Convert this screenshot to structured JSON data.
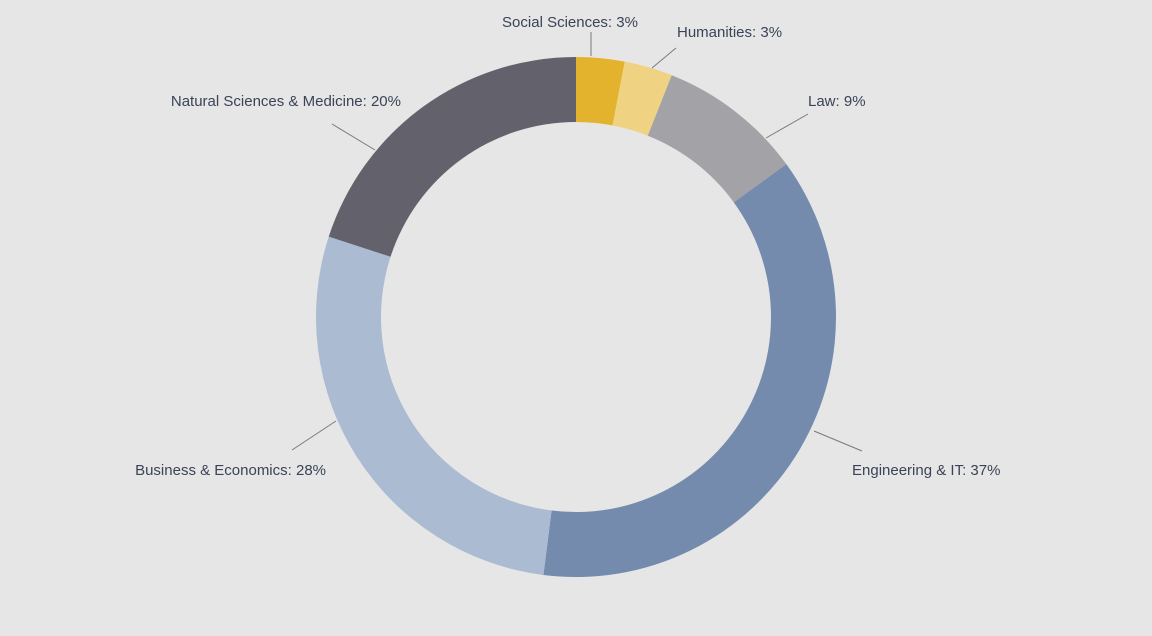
{
  "chart_data": {
    "type": "pie",
    "variant": "donut",
    "title": "",
    "start_angle_deg": 0,
    "direction": "clockwise",
    "slices": [
      {
        "label": "Social Sciences",
        "display": "Social Sciences: 3%",
        "value": 3,
        "color": "#e3b32d"
      },
      {
        "label": "Humanities",
        "display": "Humanities: 3%",
        "value": 3,
        "color": "#f0d283"
      },
      {
        "label": "Law",
        "display": "Law: 9%",
        "value": 9,
        "color": "#a3a2a7"
      },
      {
        "label": "Engineering & IT",
        "display": "Engineering & IT: 37%",
        "value": 37,
        "color": "#748bad"
      },
      {
        "label": "Business & Economics",
        "display": "Business & Economics: 28%",
        "value": 28,
        "color": "#abbbd1"
      },
      {
        "label": "Natural Sciences & Medicine",
        "display": "Natural Sciences & Medicine: 20%",
        "value": 20,
        "color": "#63616b"
      }
    ],
    "legend": "none",
    "labels": "outside-with-leader-lines"
  }
}
